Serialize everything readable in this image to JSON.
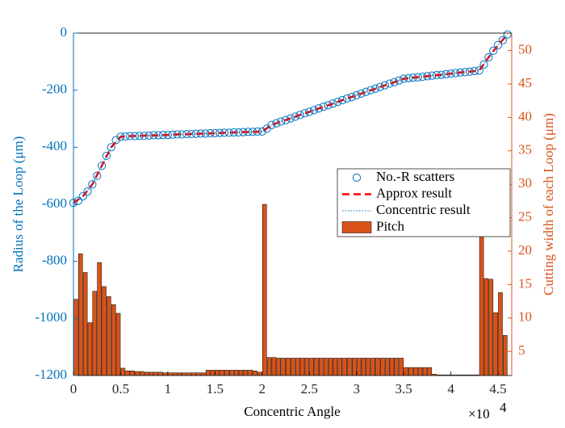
{
  "chart_data": {
    "type": "combo",
    "xlabel": "Concentric Angle",
    "ylabel": "Radius of the Loop (μm)",
    "y2label": "Cutting width of each Loop (μm)",
    "x_multiplier": {
      "base": "×10",
      "exponent": "4"
    },
    "xlim": [
      0,
      46450
    ],
    "ylim": [
      -1200,
      0
    ],
    "y2lim": [
      1.4,
      52.6
    ],
    "xticks": [
      0,
      {
        "value": 5000,
        "label": "0.5"
      },
      {
        "value": 10000,
        "label": "1"
      },
      {
        "value": 15000,
        "label": "1.5"
      },
      {
        "value": 20000,
        "label": "2"
      },
      {
        "value": 25000,
        "label": "2.5"
      },
      {
        "value": 30000,
        "label": "3"
      },
      {
        "value": 35000,
        "label": "3.5"
      },
      {
        "value": 40000,
        "label": "4"
      },
      {
        "value": 45000,
        "label": "4.5"
      }
    ],
    "yticks": [
      0,
      -200,
      -400,
      -600,
      -800,
      -1000,
      -1200
    ],
    "y2ticks": [
      5,
      10,
      15,
      20,
      25,
      30,
      35,
      40,
      45,
      50
    ],
    "ycolor": "#0072bd",
    "y2color": "#d95319",
    "legend": "east",
    "series": [
      {
        "name": "Pitch",
        "type": "histogram",
        "axis": "y2",
        "color": "#d95319",
        "bins": [
          0,
          500,
          1000,
          1500,
          2000,
          2500,
          3000,
          3500,
          4000,
          4500,
          5000,
          5500,
          6000,
          6500,
          7000,
          7500,
          8000,
          8500,
          9000,
          9500,
          10000,
          10500,
          11000,
          11500,
          12000,
          12500,
          13000,
          13500,
          14000,
          14500,
          15000,
          15500,
          16000,
          16500,
          17000,
          17500,
          18000,
          18500,
          19000,
          19500,
          20000,
          20500,
          21000,
          21500,
          22000,
          22500,
          23000,
          23500,
          24000,
          24500,
          25000,
          25500,
          26000,
          26500,
          27000,
          27500,
          28000,
          28500,
          29000,
          29500,
          30000,
          30500,
          31000,
          31500,
          32000,
          32500,
          33000,
          33500,
          34000,
          34500,
          35000,
          35500,
          36000,
          36500,
          37000,
          37500,
          38000,
          38500,
          39000,
          39500,
          40000,
          40500,
          41000,
          41500,
          42000,
          42500,
          43000,
          43500,
          44000,
          44500,
          45000,
          45500,
          46000
        ],
        "values": [
          12.8,
          19.6,
          16.8,
          9.3,
          14.0,
          18.3,
          14.7,
          13.2,
          12.0,
          10.7,
          2.5,
          2.1,
          2.1,
          2.0,
          2.0,
          1.9,
          1.9,
          1.9,
          1.9,
          1.8,
          1.8,
          1.8,
          1.8,
          1.8,
          1.8,
          1.8,
          1.8,
          1.8,
          2.2,
          2.2,
          2.2,
          2.2,
          2.2,
          2.2,
          2.2,
          2.2,
          2.2,
          2.2,
          2.1,
          1.9,
          27.0,
          4.1,
          4.1,
          4.0,
          4.0,
          4.0,
          4.0,
          4.0,
          4.0,
          4.0,
          4.0,
          4.0,
          4.0,
          4.0,
          4.0,
          4.0,
          4.0,
          4.0,
          4.0,
          4.0,
          4.0,
          4.0,
          4.0,
          4.0,
          4.0,
          4.0,
          4.0,
          4.0,
          4.0,
          4.0,
          2.6,
          2.6,
          2.6,
          2.6,
          2.6,
          2.6,
          1.6,
          1.5,
          1.5,
          1.5,
          1.5,
          1.5,
          1.5,
          1.5,
          1.5,
          1.5,
          22.6,
          15.9,
          15.8,
          10.8,
          13.8,
          7.4
        ]
      },
      {
        "name": "No.-R scatters",
        "type": "scatter",
        "marker": "o",
        "color": "#0072bd",
        "x": [
          0,
          500,
          1000,
          1500,
          2000,
          2500,
          3000,
          3500,
          4000,
          4500,
          5000,
          5500,
          6000,
          6500,
          7000,
          7500,
          8000,
          8500,
          9000,
          9500,
          10000,
          10500,
          11000,
          11500,
          12000,
          12500,
          13000,
          13500,
          14000,
          14500,
          15000,
          15500,
          16000,
          16500,
          17000,
          17500,
          18000,
          18500,
          19000,
          19500,
          20000,
          20500,
          21000,
          21500,
          22000,
          22500,
          23000,
          23500,
          24000,
          24500,
          25000,
          25500,
          26000,
          26500,
          27000,
          27500,
          28000,
          28500,
          29000,
          29500,
          30000,
          30500,
          31000,
          31500,
          32000,
          32500,
          33000,
          33500,
          34000,
          34500,
          35000,
          35500,
          36000,
          36500,
          37000,
          37500,
          38000,
          38500,
          39000,
          39500,
          40000,
          40500,
          41000,
          41500,
          42000,
          42500,
          43000,
          43500,
          44000,
          44500,
          45000,
          45500,
          46000
        ],
        "values": [
          -595,
          -588,
          -572,
          -555,
          -530,
          -500,
          -465,
          -430,
          -400,
          -375,
          -363,
          -362,
          -361,
          -361,
          -360,
          -360,
          -359,
          -358,
          -358,
          -357,
          -357,
          -356,
          -355,
          -355,
          -354,
          -354,
          -353,
          -352,
          -352,
          -351,
          -351,
          -350,
          -349,
          -349,
          -348,
          -348,
          -347,
          -346,
          -346,
          -345,
          -345,
          -335,
          -322,
          -316,
          -310,
          -305,
          -299,
          -293,
          -287,
          -281,
          -276,
          -270,
          -264,
          -258,
          -253,
          -247,
          -241,
          -235,
          -229,
          -224,
          -218,
          -212,
          -206,
          -200,
          -195,
          -189,
          -183,
          -177,
          -172,
          -166,
          -160,
          -158,
          -156,
          -155,
          -153,
          -151,
          -149,
          -147,
          -146,
          -144,
          -142,
          -140,
          -138,
          -137,
          -135,
          -133,
          -131,
          -110,
          -85,
          -62,
          -42,
          -25,
          -5
        ]
      },
      {
        "name": "Approx result",
        "type": "line",
        "line_style": "dashed",
        "color": "#ff0000",
        "x": [
          0,
          1000,
          2000,
          3000,
          4000,
          5000,
          6000,
          7000,
          8000,
          9000,
          10000,
          11000,
          12000,
          13000,
          14000,
          15000,
          16000,
          17000,
          18000,
          19000,
          20000,
          21000,
          22000,
          23000,
          24000,
          25000,
          26000,
          27000,
          28000,
          29000,
          30000,
          31000,
          32000,
          33000,
          34000,
          35000,
          36000,
          37000,
          38000,
          39000,
          40000,
          41000,
          42000,
          43000,
          44000,
          45000,
          46000
        ],
        "values": [
          -595,
          -572,
          -530,
          -465,
          -400,
          -363,
          -361,
          -360,
          -359,
          -358,
          -357,
          -355,
          -354,
          -353,
          -352,
          -351,
          -349,
          -348,
          -347,
          -346,
          -345,
          -322,
          -310,
          -299,
          -287,
          -276,
          -264,
          -253,
          -241,
          -229,
          -218,
          -206,
          -195,
          -183,
          -172,
          -160,
          -156,
          -153,
          -149,
          -146,
          -142,
          -138,
          -135,
          -131,
          -85,
          -42,
          -5
        ]
      },
      {
        "name": "Concentric result",
        "type": "line",
        "line_style": "dotted",
        "color": "#0072bd",
        "x": [
          0,
          1000,
          2000,
          3000,
          4000,
          5000,
          6000,
          7000,
          8000,
          9000,
          10000,
          11000,
          12000,
          13000,
          14000,
          15000,
          16000,
          17000,
          18000,
          19000,
          20000,
          21000,
          22000,
          23000,
          24000,
          25000,
          26000,
          27000,
          28000,
          29000,
          30000,
          31000,
          32000,
          33000,
          34000,
          35000,
          36000,
          37000,
          38000,
          39000,
          40000,
          41000,
          42000,
          43000,
          44000,
          45000,
          46000
        ],
        "values": [
          -595,
          -572,
          -530,
          -465,
          -400,
          -363,
          -361,
          -360,
          -359,
          -358,
          -357,
          -355,
          -354,
          -353,
          -352,
          -351,
          -349,
          -348,
          -347,
          -346,
          -345,
          -322,
          -310,
          -299,
          -287,
          -276,
          -264,
          -253,
          -241,
          -229,
          -218,
          -206,
          -195,
          -183,
          -172,
          -160,
          -156,
          -153,
          -149,
          -146,
          -142,
          -138,
          -135,
          -131,
          -85,
          -42,
          -5
        ]
      }
    ]
  }
}
